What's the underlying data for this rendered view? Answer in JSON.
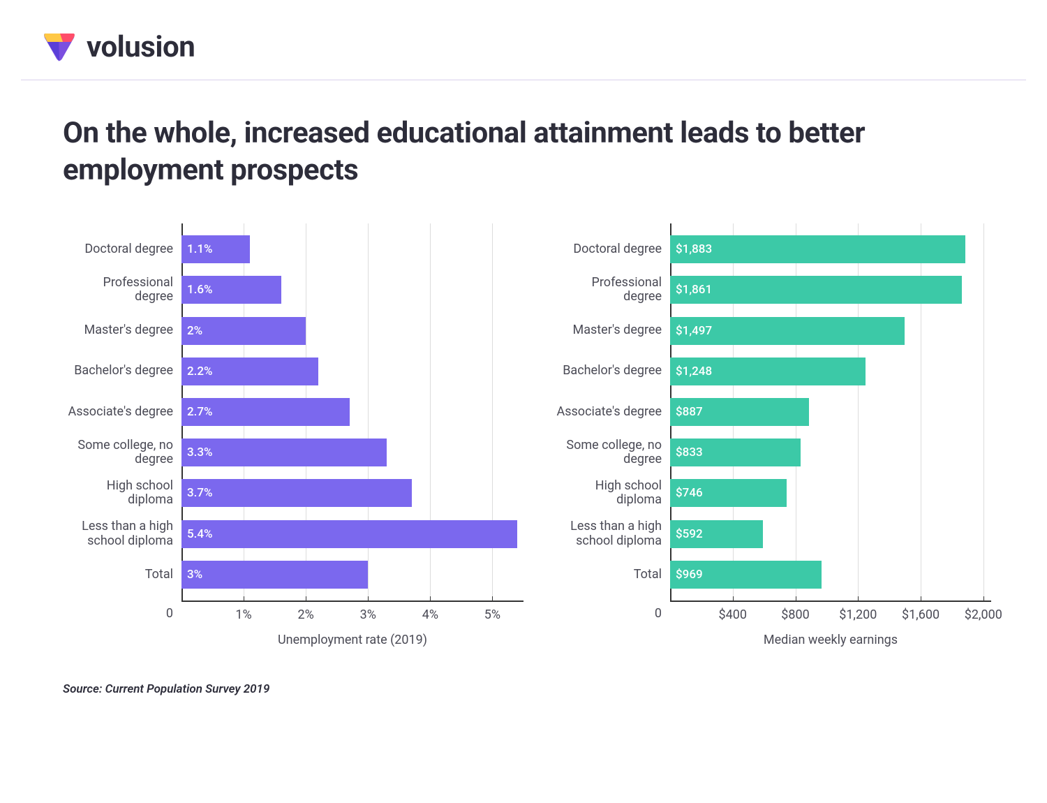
{
  "brand": {
    "name": "volusion"
  },
  "title": "On the whole, increased educational attainment leads to better employment prospects",
  "source": "Source: Current Population Survey 2019",
  "colors": {
    "bar_left": "#7b68ee",
    "bar_right": "#3cc9a7",
    "grid": "#dcdcdc",
    "axis": "#333333",
    "text": "#4a4a55"
  },
  "categories": [
    "Doctoral degree",
    "Professional degree",
    "Master's degree",
    "Bachelor's degree",
    "Associate's degree",
    "Some college, no degree",
    "High school diploma",
    "Less than a high school diploma",
    "Total"
  ],
  "chart_left": {
    "type": "horizontal_bar",
    "axis_title": "Unemployment rate (2019)",
    "xmax": 5.5,
    "ticks": [
      1,
      2,
      3,
      4,
      5
    ],
    "tick_labels": [
      "1%",
      "2%",
      "3%",
      "4%",
      "5%"
    ],
    "values": [
      1.1,
      1.6,
      2.0,
      2.2,
      2.7,
      3.3,
      3.7,
      5.4,
      3.0
    ],
    "value_labels": [
      "1.1%",
      "1.6%",
      "2%",
      "2.2%",
      "2.7%",
      "3.3%",
      "3.7%",
      "5.4%",
      "3%"
    ]
  },
  "chart_right": {
    "type": "horizontal_bar",
    "axis_title": "Median weekly earnings",
    "xmax": 2050,
    "ticks": [
      400,
      800,
      1200,
      1600,
      2000
    ],
    "tick_labels": [
      "$400",
      "$800",
      "$1,200",
      "$1,600",
      "$2,000"
    ],
    "values": [
      1883,
      1861,
      1497,
      1248,
      887,
      833,
      746,
      592,
      969
    ],
    "value_labels": [
      "$1,883",
      "$1,861",
      "$1,497",
      "$1,248",
      "$887",
      "$833",
      "$746",
      "$592",
      "$969"
    ]
  }
}
